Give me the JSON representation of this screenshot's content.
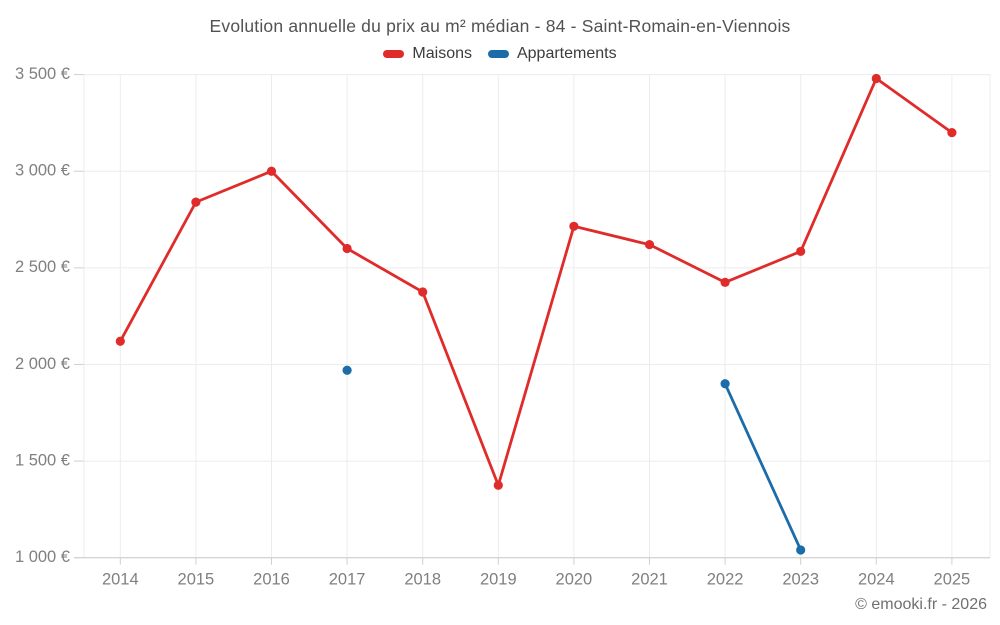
{
  "chart": {
    "title": "Evolution annuelle du prix au m² médian - 84 - Saint-Romain-en-Viennois",
    "watermark": "© emooki.fr - 2026"
  },
  "chart_data": {
    "type": "line",
    "title": "Evolution annuelle du prix au m² médian - 84 - Saint-Romain-en-Viennois",
    "categories": [
      "2014",
      "2015",
      "2016",
      "2017",
      "2018",
      "2019",
      "2020",
      "2021",
      "2022",
      "2023",
      "2024",
      "2025"
    ],
    "series": [
      {
        "name": "Maisons",
        "color": "#e02b2b",
        "values": [
          2120,
          2840,
          3000,
          2600,
          2375,
          1375,
          2715,
          2620,
          2425,
          2585,
          3480,
          3200
        ]
      },
      {
        "name": "Appartements",
        "color": "#1b6ca8",
        "values": [
          null,
          null,
          null,
          1970,
          null,
          null,
          null,
          null,
          1900,
          1040,
          null,
          null
        ]
      }
    ],
    "xlabel": "",
    "ylabel": "",
    "ylim": [
      1000,
      3500
    ],
    "ytick_values": [
      1000,
      1500,
      2000,
      2500,
      3000,
      3500
    ],
    "ytick_labels": [
      "1 000 €",
      "1 500 €",
      "2 000 €",
      "2 500 €",
      "3 000 €",
      "3 500 €"
    ],
    "grid": true,
    "legend_position": "top"
  }
}
